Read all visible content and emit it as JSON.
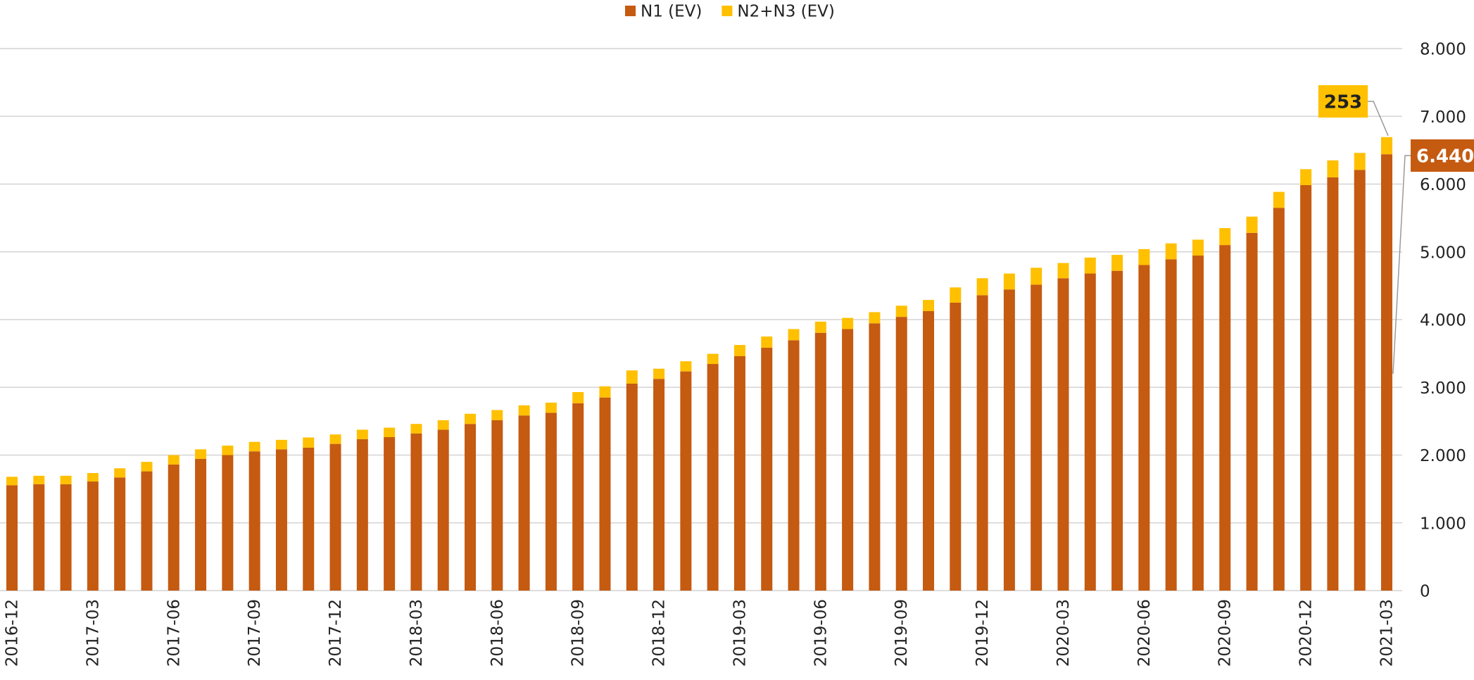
{
  "chart_data": {
    "type": "stacked_bar",
    "categories": [
      "2016-12",
      null,
      null,
      "2017-03",
      null,
      null,
      "2017-06",
      null,
      null,
      "2017-09",
      null,
      null,
      "2017-12",
      null,
      null,
      "2018-03",
      null,
      null,
      "2018-06",
      null,
      null,
      "2018-09",
      null,
      null,
      "2018-12",
      null,
      null,
      "2019-03",
      null,
      null,
      "2019-06",
      null,
      null,
      "2019-09",
      null,
      null,
      "2019-12",
      null,
      null,
      "2020-03",
      null,
      null,
      "2020-06",
      null,
      null,
      "2020-09",
      null,
      null,
      "2020-12",
      null,
      null,
      "2021-03"
    ],
    "series": [
      {
        "name": "N1 (EV)",
        "color": "#c55a11",
        "values": [
          1555,
          1570,
          1570,
          1610,
          1670,
          1760,
          1860,
          1945,
          2000,
          2055,
          2085,
          2110,
          2165,
          2235,
          2265,
          2320,
          2375,
          2460,
          2515,
          2585,
          2625,
          2765,
          2850,
          3055,
          3125,
          3235,
          3345,
          3460,
          3585,
          3695,
          3805,
          3860,
          3945,
          4040,
          4125,
          4250,
          4360,
          4445,
          4515,
          4610,
          4680,
          4720,
          4805,
          4890,
          4945,
          5100,
          5280,
          5650,
          5985,
          6100,
          6210,
          6440
        ],
        "value_labels": [
          null,
          null,
          null,
          null,
          null,
          null,
          null,
          null,
          null,
          null,
          null,
          null,
          null,
          null,
          null,
          null,
          null,
          null,
          null,
          null,
          null,
          null,
          null,
          null,
          null,
          null,
          null,
          null,
          null,
          null,
          null,
          null,
          null,
          null,
          null,
          null,
          null,
          null,
          null,
          null,
          null,
          null,
          null,
          null,
          null,
          null,
          null,
          null,
          null,
          null,
          null,
          "6.440"
        ]
      },
      {
        "name": "N2+N3 (EV)",
        "color": "#ffc000",
        "values": [
          125,
          125,
          125,
          125,
          135,
          140,
          140,
          140,
          140,
          140,
          140,
          150,
          140,
          140,
          140,
          140,
          140,
          150,
          150,
          150,
          150,
          165,
          165,
          195,
          150,
          150,
          150,
          165,
          165,
          165,
          165,
          165,
          165,
          165,
          165,
          225,
          250,
          235,
          250,
          225,
          235,
          235,
          235,
          235,
          235,
          250,
          240,
          235,
          235,
          250,
          250,
          253
        ],
        "value_labels": [
          null,
          null,
          null,
          null,
          null,
          null,
          null,
          null,
          null,
          null,
          null,
          null,
          null,
          null,
          null,
          null,
          null,
          null,
          null,
          null,
          null,
          null,
          null,
          null,
          null,
          null,
          null,
          null,
          null,
          null,
          null,
          null,
          null,
          null,
          null,
          null,
          null,
          null,
          null,
          null,
          null,
          null,
          null,
          null,
          null,
          null,
          null,
          null,
          null,
          null,
          null,
          "253"
        ]
      }
    ],
    "ylim": [
      0,
      8000
    ],
    "yticks": [
      0,
      {
        "value": 1000,
        "label": "1.000"
      },
      {
        "value": 2000,
        "label": "2.000"
      },
      {
        "value": 3000,
        "label": "3.000"
      },
      {
        "value": 4000,
        "label": "4.000"
      },
      {
        "value": 5000,
        "label": "5.000"
      },
      {
        "value": 6000,
        "label": "6.000"
      },
      {
        "value": 7000,
        "label": "7.000"
      },
      {
        "value": 8000,
        "label": "8.000"
      }
    ],
    "grid": true,
    "legend": "top"
  }
}
